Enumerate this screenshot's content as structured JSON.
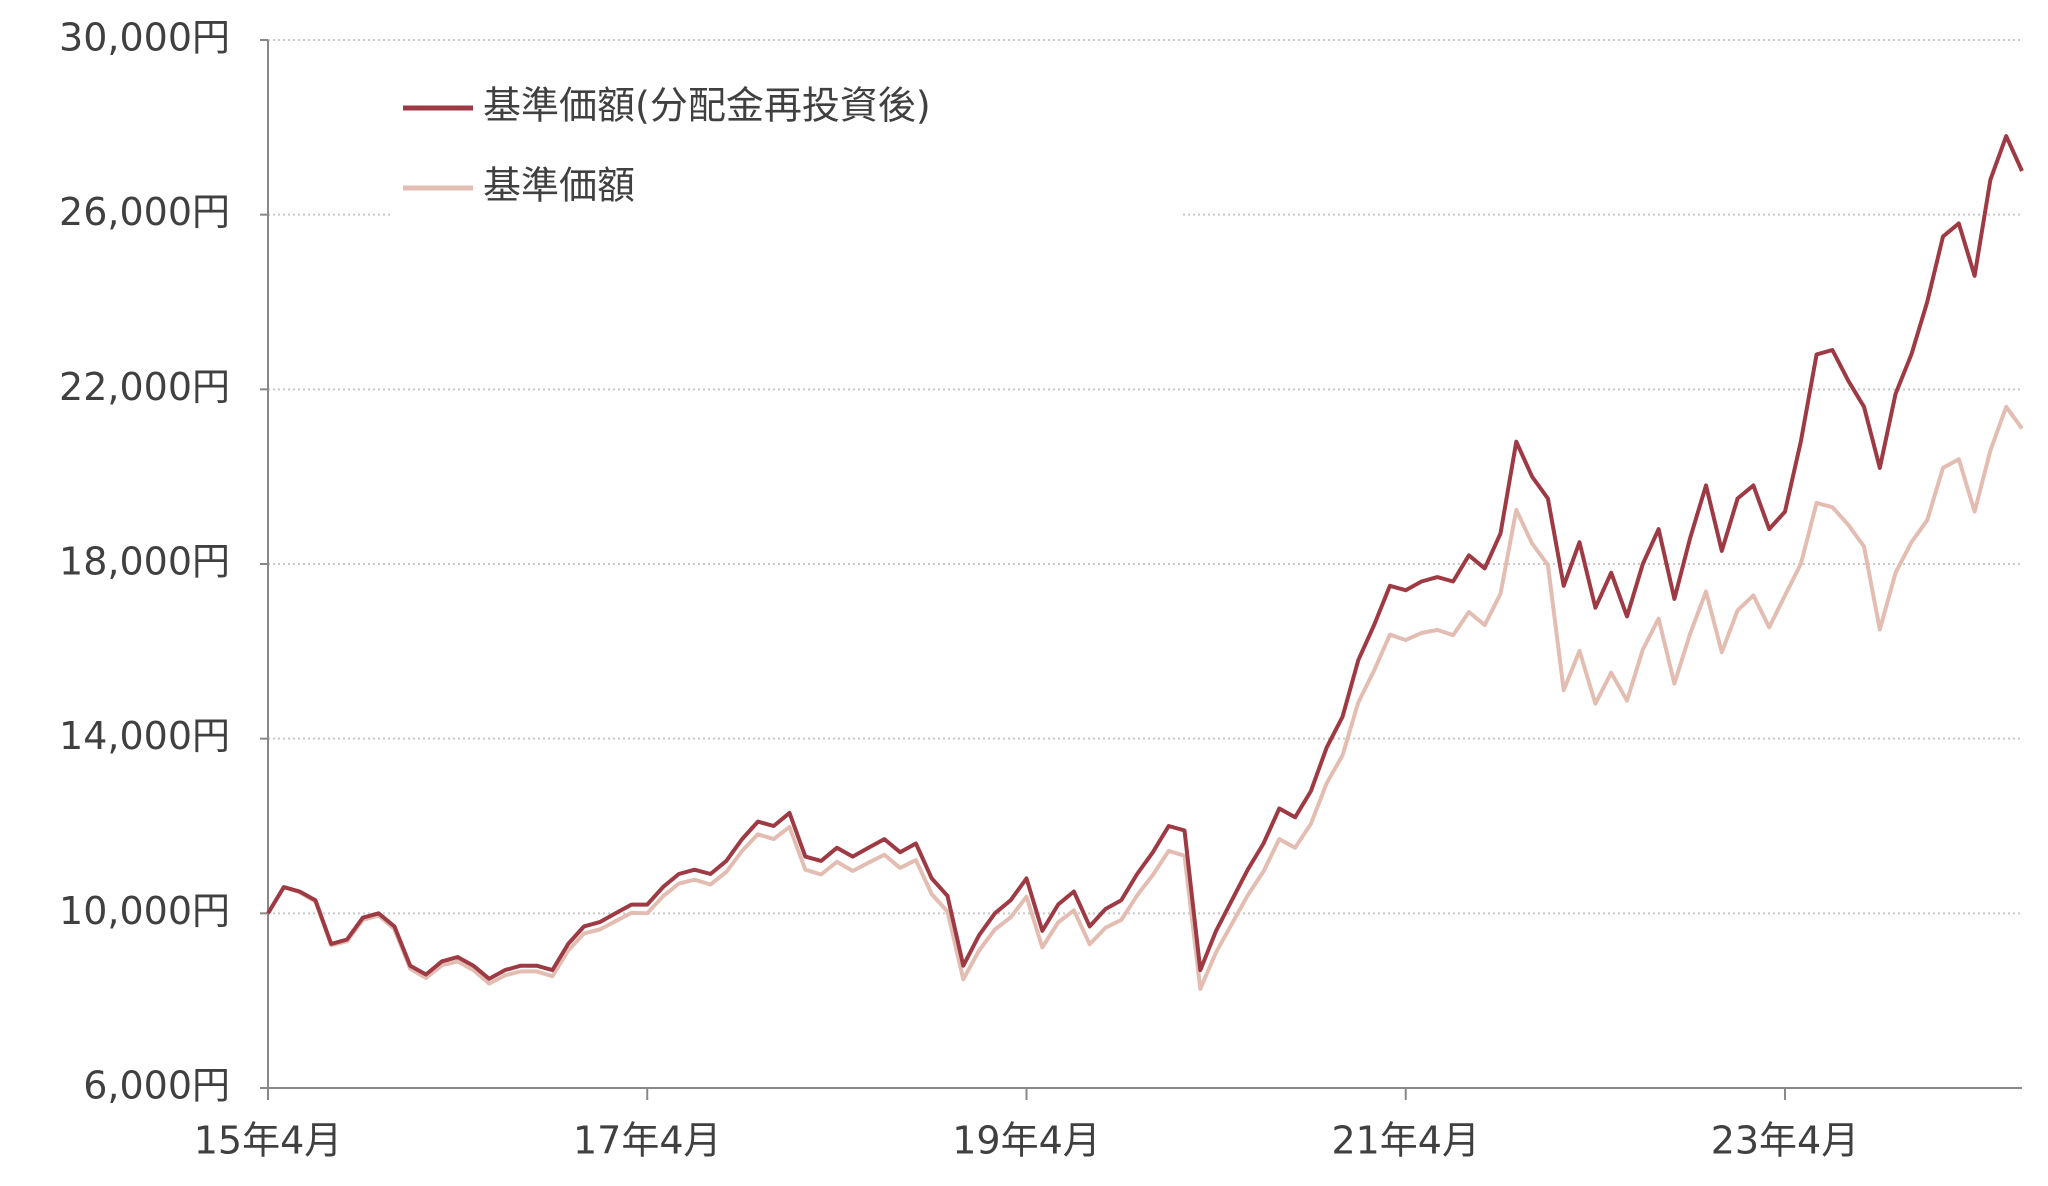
{
  "chart_data": {
    "type": "line",
    "x": [
      "2015-04",
      "2015-05",
      "2015-06",
      "2015-07",
      "2015-08",
      "2015-09",
      "2015-10",
      "2015-11",
      "2015-12",
      "2016-01",
      "2016-02",
      "2016-03",
      "2016-04",
      "2016-05",
      "2016-06",
      "2016-07",
      "2016-08",
      "2016-09",
      "2016-10",
      "2016-11",
      "2016-12",
      "2017-01",
      "2017-02",
      "2017-03",
      "2017-04",
      "2017-05",
      "2017-06",
      "2017-07",
      "2017-08",
      "2017-09",
      "2017-10",
      "2017-11",
      "2017-12",
      "2018-01",
      "2018-02",
      "2018-03",
      "2018-04",
      "2018-05",
      "2018-06",
      "2018-07",
      "2018-08",
      "2018-09",
      "2018-10",
      "2018-11",
      "2018-12",
      "2019-01",
      "2019-02",
      "2019-03",
      "2019-04",
      "2019-05",
      "2019-06",
      "2019-07",
      "2019-08",
      "2019-09",
      "2019-10",
      "2019-11",
      "2019-12",
      "2020-01",
      "2020-02",
      "2020-03",
      "2020-04",
      "2020-05",
      "2020-06",
      "2020-07",
      "2020-08",
      "2020-09",
      "2020-10",
      "2020-11",
      "2020-12",
      "2021-01",
      "2021-02",
      "2021-03",
      "2021-04",
      "2021-05",
      "2021-06",
      "2021-07",
      "2021-08",
      "2021-09",
      "2021-10",
      "2021-11",
      "2021-12",
      "2022-01",
      "2022-02",
      "2022-03",
      "2022-04",
      "2022-05",
      "2022-06",
      "2022-07",
      "2022-08",
      "2022-09",
      "2022-10",
      "2022-11",
      "2022-12",
      "2023-01",
      "2023-02",
      "2023-03",
      "2023-04",
      "2023-05",
      "2023-06",
      "2023-07",
      "2023-08",
      "2023-09",
      "2023-10",
      "2023-11",
      "2023-12",
      "2024-01",
      "2024-02",
      "2024-03",
      "2024-04",
      "2024-05",
      "2024-06",
      "2024-07"
    ],
    "series": [
      {
        "name": "基準価額(分配金再投資後)",
        "color": "#9e3a43",
        "values": [
          10000,
          10600,
          10500,
          10300,
          9300,
          9400,
          9900,
          10000,
          9700,
          8800,
          8600,
          8900,
          9000,
          8800,
          8500,
          8700,
          8800,
          8800,
          8700,
          9300,
          9700,
          9800,
          10000,
          10200,
          10200,
          10600,
          10900,
          11000,
          10900,
          11200,
          11700,
          12100,
          12000,
          12300,
          11300,
          11200,
          11500,
          11300,
          11500,
          11700,
          11400,
          11600,
          10800,
          10400,
          8800,
          9500,
          10000,
          10300,
          10800,
          9600,
          10200,
          10500,
          9700,
          10100,
          10300,
          10900,
          11400,
          12000,
          11900,
          8700,
          9600,
          10300,
          11000,
          11600,
          12400,
          12200,
          12800,
          13800,
          14500,
          15800,
          16600,
          17500,
          17400,
          17600,
          17700,
          17600,
          18200,
          17900,
          18700,
          20800,
          20000,
          19500,
          17500,
          18500,
          17000,
          17800,
          16800,
          18000,
          18800,
          17200,
          18600,
          19800,
          18300,
          19500,
          19800,
          18800,
          19200,
          20800,
          22800,
          22900,
          22200,
          21600,
          20200,
          21900,
          22800,
          24000,
          25500,
          25800,
          24600,
          26800,
          27800,
          27000
        ]
      },
      {
        "name": "基準価額",
        "color": "#e3bdb2",
        "values": [
          10000,
          10600,
          10480,
          10270,
          9270,
          9360,
          9850,
          9950,
          9640,
          8730,
          8520,
          8810,
          8900,
          8700,
          8390,
          8580,
          8670,
          8670,
          8560,
          9150,
          9540,
          9630,
          9820,
          10010,
          10000,
          10390,
          10680,
          10770,
          10660,
          10950,
          11430,
          11810,
          11700,
          11980,
          11000,
          10890,
          11180,
          10970,
          11160,
          11340,
          11040,
          11220,
          10440,
          10040,
          8490,
          9150,
          9630,
          9910,
          10380,
          9220,
          9790,
          10070,
          9290,
          9670,
          9850,
          10410,
          10880,
          11430,
          11320,
          8270,
          9110,
          9760,
          10410,
          10960,
          11700,
          11500,
          12050,
          12980,
          13620,
          14830,
          15560,
          16380,
          16260,
          16420,
          16490,
          16370,
          16900,
          16600,
          17320,
          19240,
          18470,
          17980,
          15110,
          16010,
          14800,
          15510,
          14870,
          16040,
          16750,
          15260,
          16410,
          17370,
          15980,
          16940,
          17280,
          16550,
          17280,
          18000,
          19400,
          19300,
          18900,
          18400,
          16500,
          17800,
          18500,
          19000,
          20200,
          20400,
          19200,
          20600,
          21600,
          21100
        ]
      }
    ],
    "xlim": [
      "2015-04",
      "2024-07"
    ],
    "xticks": [
      {
        "value": "2015-04",
        "label": "15年4月"
      },
      {
        "value": "2017-04",
        "label": "17年4月"
      },
      {
        "value": "2019-04",
        "label": "19年4月"
      },
      {
        "value": "2021-04",
        "label": "21年4月"
      },
      {
        "value": "2023-04",
        "label": "23年4月"
      }
    ],
    "ylim": [
      6000,
      30000
    ],
    "yticks": [
      {
        "value": 6000,
        "label": "6,000円"
      },
      {
        "value": 10000,
        "label": "10,000円"
      },
      {
        "value": 14000,
        "label": "14,000円"
      },
      {
        "value": 18000,
        "label": "18,000円"
      },
      {
        "value": 22000,
        "label": "22,000円"
      },
      {
        "value": 26000,
        "label": "26,000円"
      },
      {
        "value": 30000,
        "label": "30,000円"
      }
    ],
    "grid": true,
    "legend": "top-left"
  }
}
